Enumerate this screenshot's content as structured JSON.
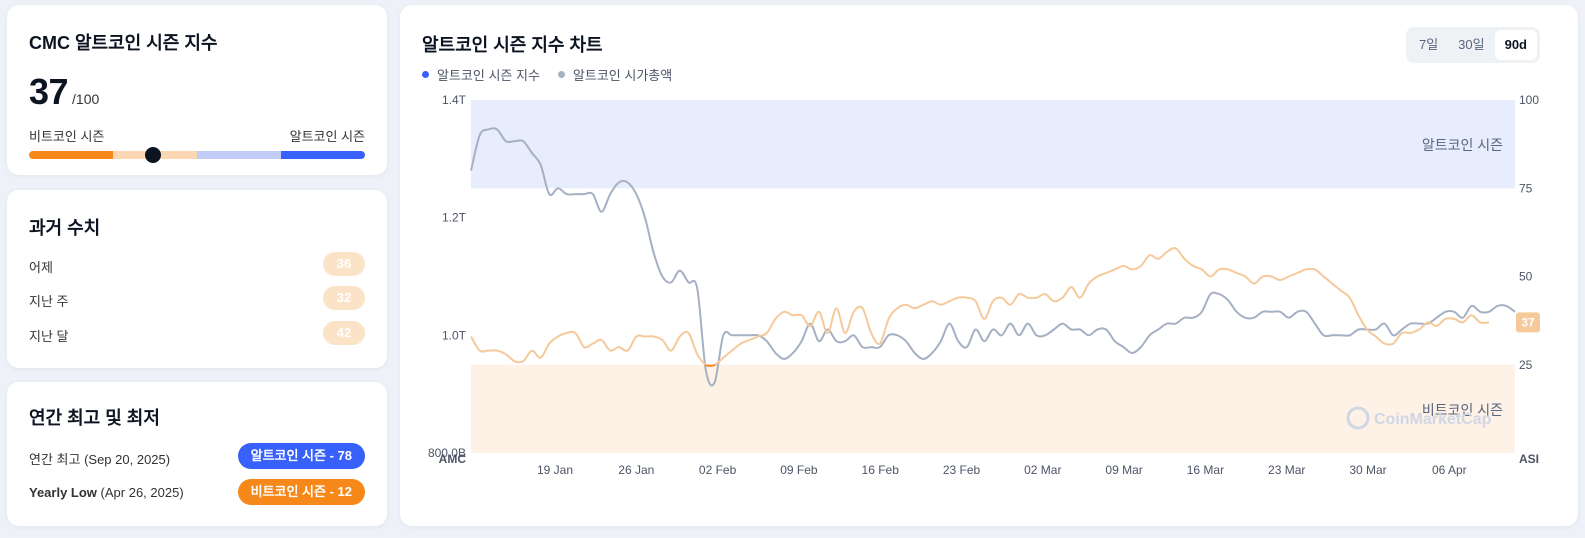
{
  "index_card": {
    "title": "CMC 알트코인 시즌 지수",
    "value": "37",
    "max": "/100",
    "left_label": "비트코인 시즌",
    "right_label": "알트코인 시즌",
    "gauge_value": 37
  },
  "history": {
    "title": "과거 수치",
    "items": [
      {
        "label": "어제",
        "value": "36"
      },
      {
        "label": "지난 주",
        "value": "32"
      },
      {
        "label": "지난 달",
        "value": "42"
      }
    ]
  },
  "yearly": {
    "title": "연간 최고 및 최저",
    "high": {
      "label": "연간 최고",
      "date": "(Sep 20, 2025)",
      "badge": "알트코인 시즌 - 78",
      "color": "#3861fb"
    },
    "low": {
      "label": "Yearly Low",
      "date": "(Apr 26, 2025)",
      "badge": "비트코인 시즌 - 12",
      "color": "#f68819"
    }
  },
  "chart": {
    "title": "알트코인 시즌 지수 차트",
    "legend": [
      {
        "label": "알트코인 시즌 지수",
        "color": "#3861fb"
      },
      {
        "label": "알트코인 시가총액",
        "color": "#a6b0c3"
      }
    ],
    "ranges": [
      {
        "label": "7일",
        "active": false
      },
      {
        "label": "30일",
        "active": false
      },
      {
        "label": "90d",
        "active": true
      }
    ],
    "left_axis_label": "AMC",
    "right_axis_label": "ASI",
    "altseason_zone_label": "알트코인 시즌",
    "bitcoin_zone_label": "비트코인 시즌",
    "current_value_label": "37",
    "watermark": "CoinMarketCap",
    "colors": {
      "altseason_zone": "#e8edfd",
      "bitcoin_zone": "#fef1e6",
      "index_line": "#f5c99a",
      "index_low": "#f68819",
      "mcap_line": "#a6b0c3"
    }
  },
  "chart_data": {
    "type": "line",
    "x_ticks": [
      "19 Jan",
      "26 Jan",
      "02 Feb",
      "09 Feb",
      "16 Feb",
      "23 Feb",
      "02 Mar",
      "09 Mar",
      "16 Mar",
      "23 Mar",
      "30 Mar",
      "06 Apr"
    ],
    "left_axis": {
      "label": "AMC",
      "ticks": [
        "1.4T",
        "1.2T",
        "1.0T",
        "800.0B"
      ],
      "range_trillions": [
        0.8,
        1.4
      ]
    },
    "right_axis": {
      "label": "ASI",
      "ticks": [
        "100",
        "75",
        "50",
        "25"
      ],
      "range": [
        0,
        100
      ]
    },
    "series": [
      {
        "name": "알트코인 시가총액",
        "unit": "T",
        "values": [
          1.28,
          1.34,
          1.35,
          1.35,
          1.33,
          1.33,
          1.33,
          1.31,
          1.29,
          1.24,
          1.25,
          1.24,
          1.24,
          1.24,
          1.24,
          1.21,
          1.24,
          1.26,
          1.26,
          1.24,
          1.2,
          1.14,
          1.1,
          1.09,
          1.11,
          1.09,
          1.08,
          0.94,
          0.92,
          1.0,
          1.0,
          1.0,
          1.0,
          1.0,
          0.99,
          0.97,
          0.96,
          0.97,
          0.99,
          1.02,
          0.99,
          1.01,
          0.99,
          0.99,
          1.0,
          0.98,
          0.98,
          0.98,
          1.0,
          1.0,
          0.99,
          0.97,
          0.96,
          0.97,
          0.99,
          1.02,
          0.99,
          0.98,
          1.01,
          0.99,
          1.01,
          1.0,
          1.02,
          1.0,
          1.02,
          1.0,
          1.0,
          1.01,
          1.02,
          1.01,
          1.01,
          1.0,
          1.01,
          1.01,
          0.99,
          0.98,
          0.97,
          0.98,
          1.0,
          1.01,
          1.02,
          1.02,
          1.03,
          1.03,
          1.04,
          1.07,
          1.07,
          1.06,
          1.04,
          1.03,
          1.03,
          1.04,
          1.04,
          1.04,
          1.03,
          1.04,
          1.04,
          1.02,
          1.0,
          1.0,
          1.0,
          1.0,
          1.01,
          1.01,
          1.01,
          1.02,
          1.0,
          1.01,
          1.02,
          1.02,
          1.02,
          1.03,
          1.04,
          1.04,
          1.03,
          1.05,
          1.04,
          1.04,
          1.05,
          1.05,
          1.04
        ]
      },
      {
        "name": "알트코인 시즌 지수",
        "values": [
          33,
          29,
          29,
          29,
          28,
          26,
          26,
          29,
          27,
          31,
          33,
          34,
          34,
          30,
          31,
          32,
          29,
          30,
          29,
          33,
          33,
          33,
          32,
          29,
          33,
          34,
          28,
          25,
          25,
          27,
          29,
          31,
          32,
          33,
          34,
          38,
          40,
          39,
          39,
          36,
          40,
          34,
          41,
          34,
          40,
          41,
          34,
          31,
          38,
          41,
          42,
          41,
          42,
          43,
          42,
          43,
          44,
          44,
          43,
          38,
          43,
          44,
          42,
          45,
          44,
          44,
          45,
          43,
          44,
          47,
          44,
          48,
          50,
          51,
          52,
          53,
          52,
          53,
          56,
          55,
          57,
          58,
          55,
          53,
          52,
          50,
          52,
          52,
          51,
          50,
          48,
          50,
          50,
          49,
          50,
          51,
          52,
          52,
          50,
          48,
          46,
          44,
          39,
          35,
          33,
          31,
          31,
          34,
          34,
          35,
          37,
          36,
          38,
          38,
          37,
          39,
          37,
          37
        ]
      }
    ]
  }
}
